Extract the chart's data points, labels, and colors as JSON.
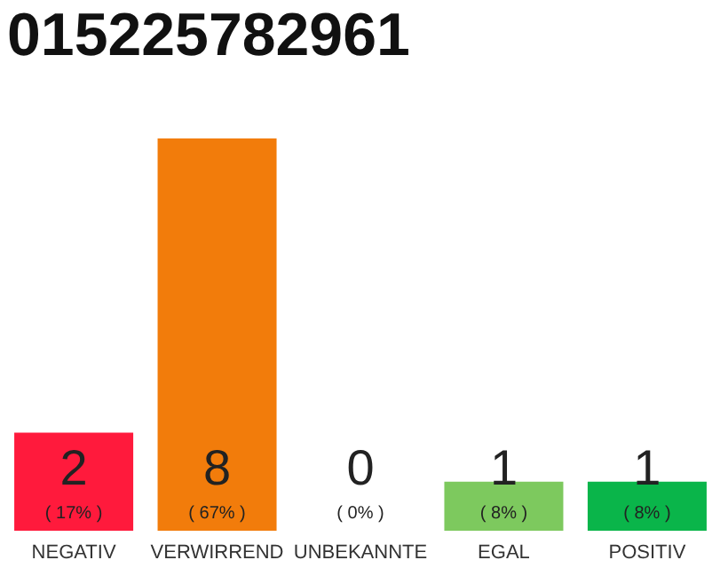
{
  "chart_data": {
    "type": "bar",
    "title": "015225782961",
    "categories": [
      "NEGATIV",
      "VERWIRREND",
      "UNBEKANNTE",
      "EGAL",
      "POSITIV"
    ],
    "values": [
      2,
      8,
      0,
      1,
      1
    ],
    "colors": [
      "#ff1a3c",
      "#f27c0b",
      "#cccccc",
      "#7dc95e",
      "#0ab54a"
    ],
    "data_labels": true,
    "annotations": [
      "( 17% )",
      "( 67% )",
      "( 0% )",
      "( 8% )",
      "( 8% )"
    ],
    "grid": false
  }
}
